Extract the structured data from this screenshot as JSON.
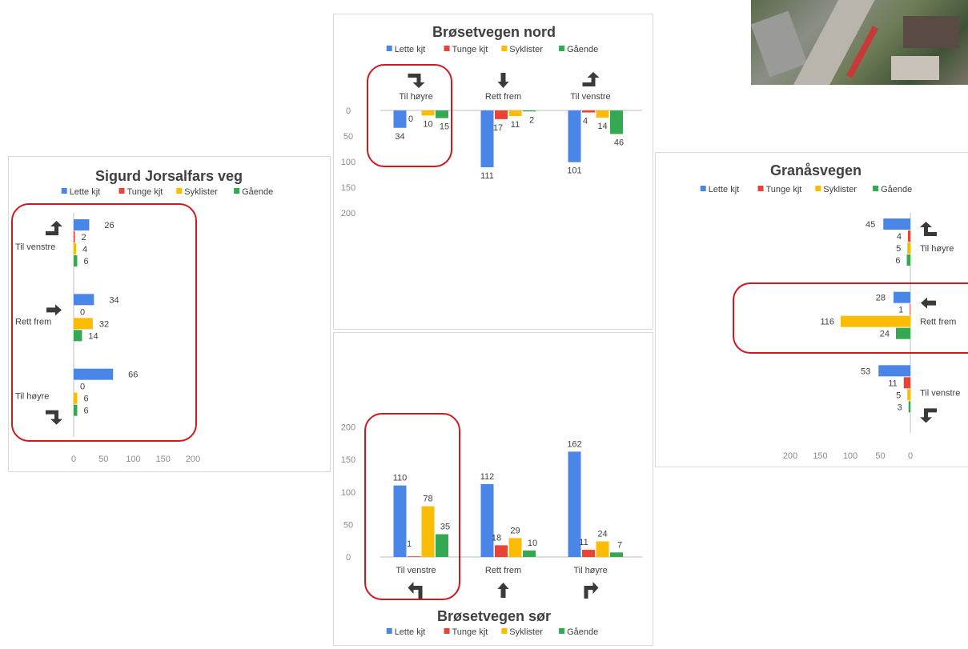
{
  "colors": {
    "lette": "#4a86e8",
    "tunge": "#e84335",
    "syklister": "#fbbc04",
    "gaende": "#34a853",
    "highlight": "#d0181e"
  },
  "legend_labels": [
    "Lette kjt",
    "Tunge kjt",
    "Syklister",
    "Gående"
  ],
  "chart_data": [
    {
      "id": "sigurd",
      "type": "bar",
      "orientation": "horizontal",
      "title": "Sigurd Jorsalfars veg",
      "categories": [
        "Til venstre",
        "Rett frem",
        "Til høyre"
      ],
      "category_icons": [
        "turn-left-arrow-icon",
        "straight-arrow-icon",
        "turn-right-arrow-icon"
      ],
      "series": [
        {
          "name": "Lette kjt",
          "values": [
            26,
            34,
            66
          ]
        },
        {
          "name": "Tunge kjt",
          "values": [
            2,
            0,
            0
          ]
        },
        {
          "name": "Syklister",
          "values": [
            4,
            32,
            6
          ]
        },
        {
          "name": "Gående",
          "values": [
            6,
            14,
            6
          ]
        }
      ],
      "xlim": [
        0,
        200
      ],
      "ticks": [
        "0",
        "50",
        "100",
        "150",
        "200"
      ],
      "legend": "top",
      "highlighted_category": "all"
    },
    {
      "id": "nord",
      "type": "bar",
      "orientation": "vertical-inverted",
      "title": "Brøsetvegen nord",
      "categories": [
        "Til høyre",
        "Rett frem",
        "Til venstre"
      ],
      "category_icons": [
        "turn-right-arrow-icon",
        "straight-arrow-icon",
        "turn-left-arrow-icon"
      ],
      "series": [
        {
          "name": "Lette kjt",
          "values": [
            34,
            111,
            101
          ]
        },
        {
          "name": "Tunge kjt",
          "values": [
            0,
            17,
            4
          ]
        },
        {
          "name": "Syklister",
          "values": [
            10,
            11,
            14
          ]
        },
        {
          "name": "Gående",
          "values": [
            15,
            2,
            46
          ]
        }
      ],
      "ylim": [
        0,
        200
      ],
      "ticks": [
        "0",
        "50",
        "100",
        "150",
        "200"
      ],
      "legend": "top",
      "highlighted_category": "Til høyre"
    },
    {
      "id": "sor",
      "type": "bar",
      "orientation": "vertical",
      "title": "Brøsetvegen sør",
      "categories": [
        "Til venstre",
        "Rett frem",
        "Til høyre"
      ],
      "category_icons": [
        "turn-left-arrow-icon",
        "straight-arrow-icon",
        "turn-right-arrow-icon"
      ],
      "series": [
        {
          "name": "Lette kjt",
          "values": [
            110,
            112,
            162
          ]
        },
        {
          "name": "Tunge kjt",
          "values": [
            1,
            18,
            11
          ]
        },
        {
          "name": "Syklister",
          "values": [
            78,
            29,
            24
          ]
        },
        {
          "name": "Gående",
          "values": [
            35,
            10,
            7
          ]
        }
      ],
      "ylim": [
        0,
        200
      ],
      "ticks": [
        "0",
        "50",
        "100",
        "150",
        "200"
      ],
      "legend": "bottom",
      "highlighted_category": "Til venstre"
    },
    {
      "id": "granas",
      "type": "bar",
      "orientation": "horizontal-reversed",
      "title": "Granåsvegen",
      "categories": [
        "Til høyre",
        "Rett frem",
        "Til venstre"
      ],
      "category_icons": [
        "turn-right-arrow-icon",
        "straight-arrow-icon",
        "turn-left-arrow-icon"
      ],
      "series": [
        {
          "name": "Lette kjt",
          "values": [
            45,
            28,
            53
          ]
        },
        {
          "name": "Tunge kjt",
          "values": [
            4,
            1,
            11
          ]
        },
        {
          "name": "Syklister",
          "values": [
            5,
            116,
            5
          ]
        },
        {
          "name": "Gående",
          "values": [
            6,
            24,
            3
          ]
        }
      ],
      "xlim": [
        0,
        200
      ],
      "ticks": [
        "0",
        "50",
        "100",
        "150",
        "200"
      ],
      "legend": "top",
      "highlighted_category": "Rett frem"
    }
  ]
}
